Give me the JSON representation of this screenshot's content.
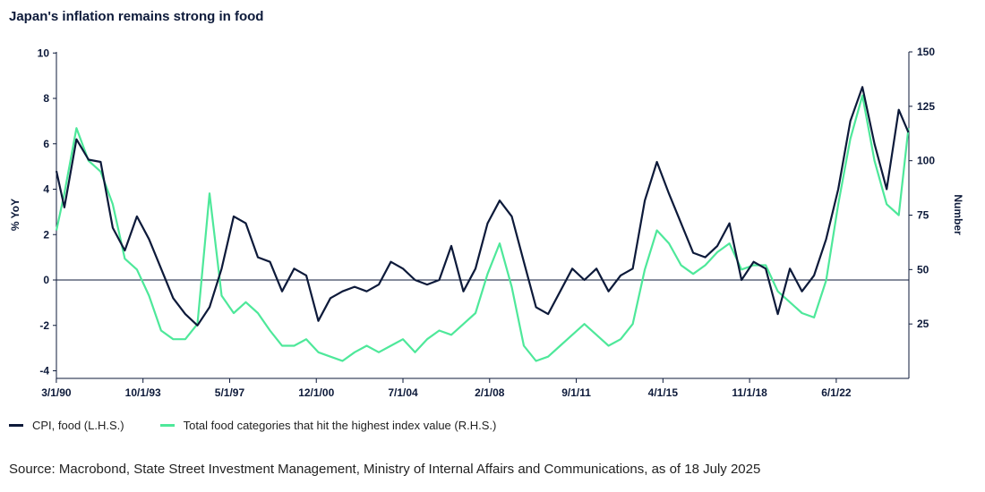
{
  "title": "Japan's inflation remains strong in food",
  "source": "Source: Macrobond, State Street Investment Management, Ministry of Internal Affairs and Communications, as of 18 July 2025",
  "colors": {
    "cpi": "#0d1a3a",
    "food": "#4ee89a",
    "axis": "#0d1a3a"
  },
  "chart_data": {
    "type": "line",
    "x_tick_labels": [
      "3/1/90",
      "10/1/93",
      "5/1/97",
      "12/1/00",
      "7/1/04",
      "2/1/08",
      "9/1/11",
      "4/1/15",
      "11/1/18",
      "6/1/22"
    ],
    "x_range": [
      "3/1/90",
      "6/1/25"
    ],
    "left_axis": {
      "label": "% YoY",
      "ticks": [
        "10",
        "8",
        "6",
        "4",
        "2",
        "0",
        "-2",
        "-4"
      ],
      "ylim": [
        -4.5,
        10
      ]
    },
    "right_axis": {
      "label": "Number",
      "ticks": [
        "150",
        "125",
        "100",
        "75",
        "50",
        "25"
      ],
      "ylim": [
        0,
        150
      ]
    },
    "legend_position": "bottom-left",
    "grid": false,
    "series": [
      {
        "name": "CPI, food (L.H.S.)",
        "axis": "left",
        "x": [
          1990.17,
          1990.5,
          1991.0,
          1991.5,
          1992.0,
          1992.5,
          1993.0,
          1993.5,
          1994.0,
          1994.5,
          1995.0,
          1995.5,
          1996.0,
          1996.5,
          1997.0,
          1997.5,
          1998.0,
          1998.5,
          1999.0,
          1999.5,
          2000.0,
          2000.5,
          2001.0,
          2001.5,
          2002.0,
          2002.5,
          2003.0,
          2003.5,
          2004.0,
          2004.5,
          2005.0,
          2005.5,
          2006.0,
          2006.5,
          2007.0,
          2007.5,
          2008.0,
          2008.5,
          2009.0,
          2009.5,
          2010.0,
          2010.5,
          2011.0,
          2011.5,
          2012.0,
          2012.5,
          2013.0,
          2013.5,
          2014.0,
          2014.5,
          2015.0,
          2015.5,
          2016.0,
          2016.5,
          2017.0,
          2017.5,
          2018.0,
          2018.5,
          2019.0,
          2019.5,
          2020.0,
          2020.5,
          2021.0,
          2021.5,
          2022.0,
          2022.5,
          2023.0,
          2023.5,
          2024.0,
          2024.5,
          2025.0,
          2025.4
        ],
        "y": [
          4.8,
          3.2,
          6.2,
          5.3,
          5.2,
          2.3,
          1.3,
          2.8,
          1.8,
          0.5,
          -0.8,
          -1.5,
          -2.0,
          -1.2,
          0.5,
          2.8,
          2.5,
          1.0,
          0.8,
          -0.5,
          0.5,
          0.2,
          -1.8,
          -0.8,
          -0.5,
          -0.3,
          -0.5,
          -0.2,
          0.8,
          0.5,
          0.0,
          -0.2,
          0.0,
          1.5,
          -0.5,
          0.5,
          2.5,
          3.5,
          2.8,
          0.8,
          -1.2,
          -1.5,
          -0.5,
          0.5,
          0.0,
          0.5,
          -0.5,
          0.2,
          0.5,
          3.5,
          5.2,
          3.8,
          2.5,
          1.2,
          1.0,
          1.5,
          2.5,
          0.0,
          0.8,
          0.5,
          -1.5,
          0.5,
          -0.5,
          0.2,
          1.8,
          4.0,
          7.0,
          8.5,
          6.0,
          4.0,
          7.5,
          6.5
        ]
      },
      {
        "name": "Total food categories that hit the highest index value (R.H.S.)",
        "axis": "right",
        "x": [
          1990.17,
          1990.5,
          1991.0,
          1991.5,
          1992.0,
          1992.5,
          1993.0,
          1993.5,
          1994.0,
          1994.5,
          1995.0,
          1995.5,
          1996.0,
          1996.5,
          1997.0,
          1997.5,
          1998.0,
          1998.5,
          1999.0,
          1999.5,
          2000.0,
          2000.5,
          2001.0,
          2001.5,
          2002.0,
          2002.5,
          2003.0,
          2003.5,
          2004.0,
          2004.5,
          2005.0,
          2005.5,
          2006.0,
          2006.5,
          2007.0,
          2007.5,
          2008.0,
          2008.5,
          2009.0,
          2009.5,
          2010.0,
          2010.5,
          2011.0,
          2011.5,
          2012.0,
          2012.5,
          2013.0,
          2013.5,
          2014.0,
          2014.5,
          2015.0,
          2015.5,
          2016.0,
          2016.5,
          2017.0,
          2017.5,
          2018.0,
          2018.5,
          2019.0,
          2019.5,
          2020.0,
          2020.5,
          2021.0,
          2021.5,
          2022.0,
          2022.5,
          2023.0,
          2023.5,
          2024.0,
          2024.5,
          2025.0,
          2025.4
        ],
        "y": [
          68,
          85,
          115,
          100,
          95,
          80,
          55,
          50,
          38,
          22,
          18,
          18,
          25,
          85,
          38,
          30,
          35,
          30,
          22,
          15,
          15,
          18,
          12,
          10,
          8,
          12,
          15,
          12,
          15,
          18,
          12,
          18,
          22,
          20,
          25,
          30,
          48,
          62,
          42,
          15,
          8,
          10,
          15,
          20,
          25,
          20,
          15,
          18,
          25,
          50,
          68,
          62,
          52,
          48,
          52,
          58,
          62,
          50,
          52,
          52,
          40,
          35,
          30,
          28,
          45,
          80,
          110,
          130,
          100,
          80,
          75,
          115
        ]
      }
    ]
  }
}
